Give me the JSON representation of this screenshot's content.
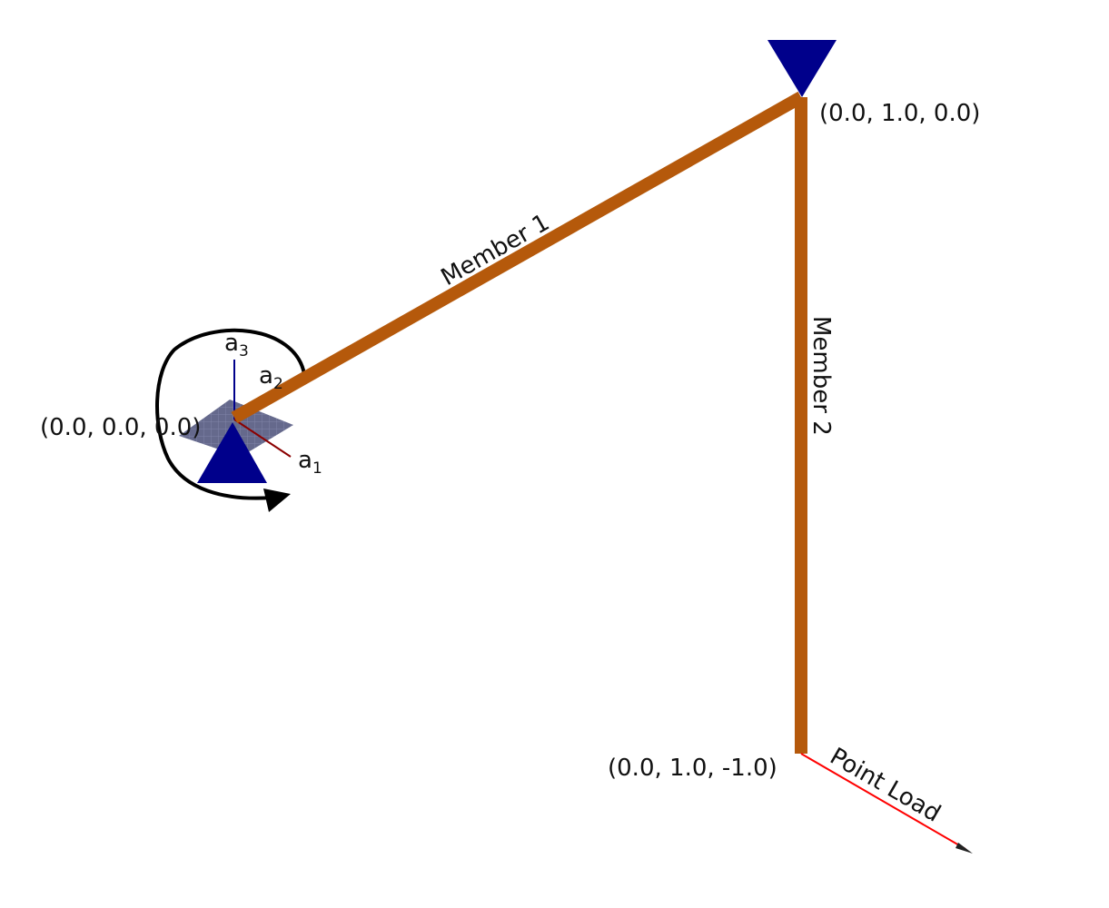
{
  "colors": {
    "member": "#b5590b",
    "support": "#00008b",
    "load": "#ff0000",
    "axis_a1": "#8b0000",
    "axis_a3": "#00008b",
    "plate": "#3a3f66",
    "moment": "#000000"
  },
  "nodes": {
    "origin": "(0.0, 0.0, 0.0)",
    "top": "(0.0, 1.0, 0.0)",
    "bottom": "(0.0, 1.0, -1.0)"
  },
  "members": {
    "m1": "Member 1",
    "m2": "Member 2"
  },
  "load": {
    "label": "Point Load"
  },
  "axes": {
    "a1": {
      "base": "a",
      "sub": "1"
    },
    "a2": {
      "base": "a",
      "sub": "2"
    },
    "a3": {
      "base": "a",
      "sub": "3"
    }
  }
}
